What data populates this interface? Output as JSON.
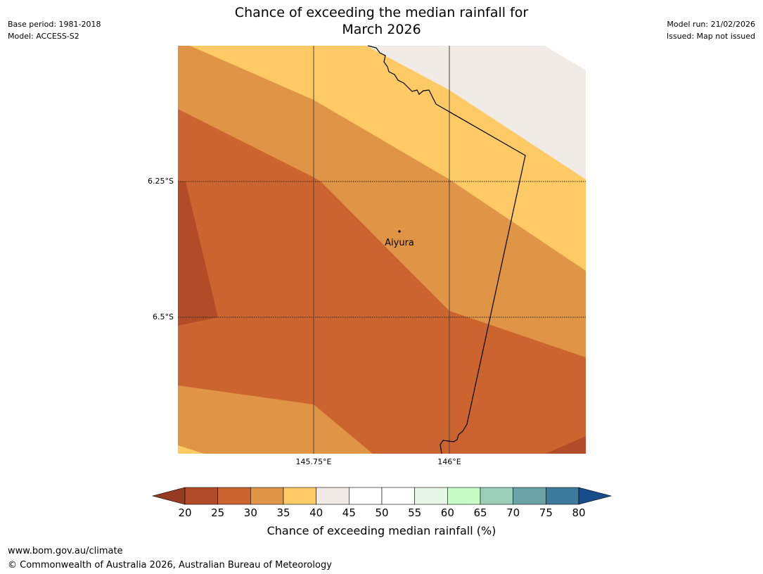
{
  "title": {
    "line1": "Chance of exceeding the median rainfall for",
    "line2": "March 2026"
  },
  "meta": {
    "base_period": "Base period: 1981-2018",
    "model": "Model: ACCESS-S2",
    "model_run": "Model run: 21/02/2026",
    "issued": "Issued: Map not issued"
  },
  "map": {
    "latitude_labels": [
      "6.25°S",
      "6.5°S"
    ],
    "longitude_labels": [
      "145.75°E",
      "146°E"
    ],
    "place": {
      "name": "Aiyura"
    },
    "colors": {
      "c20_25": "#b24b27",
      "c25_30": "#cc6430",
      "c30_35": "#e09546",
      "c35_40": "#fdca65",
      "c40_45": "#f0ebe6"
    }
  },
  "colorbar": {
    "ticks": [
      "20",
      "25",
      "30",
      "35",
      "40",
      "45",
      "50",
      "55",
      "60",
      "65",
      "70",
      "75",
      "80"
    ],
    "colors": [
      "#b24b27",
      "#cc6430",
      "#e09546",
      "#fdca65",
      "#f0ebe6",
      "#ffffff",
      "#ffffff",
      "#e8f6e8",
      "#c7fcc7",
      "#9bcfb9",
      "#6aa4a6",
      "#3d7a9b"
    ],
    "under_color": "#953b22",
    "over_color": "#174d8a",
    "label": "Chance of exceeding median rainfall (%)"
  },
  "footer": {
    "url": "www.bom.gov.au/climate",
    "copyright": "© Commonwealth of Australia 2026, Australian Bureau of Meteorology"
  }
}
